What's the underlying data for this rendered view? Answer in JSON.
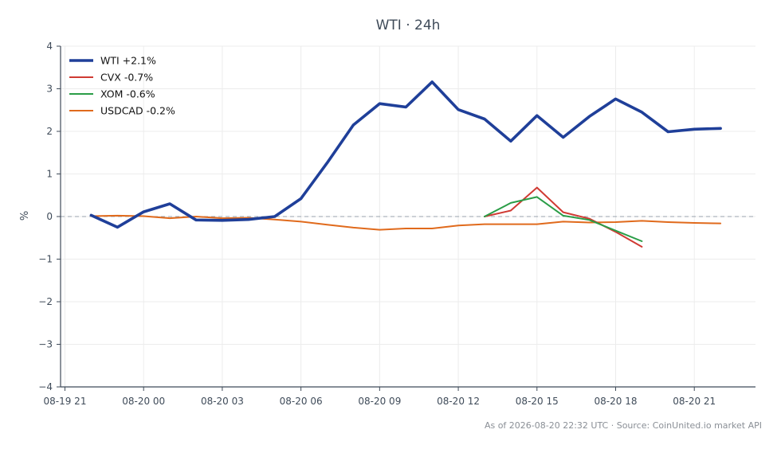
{
  "chart_data": {
    "type": "line",
    "title": "WTI · 24h",
    "xlabel": "",
    "ylabel": "%",
    "ylim": [
      -4,
      4
    ],
    "xlim": [
      "2026-08-19 20:50",
      "2026-08-20 23:20"
    ],
    "x_ticks": [
      "08-19 21",
      "08-20 00",
      "08-20 03",
      "08-20 06",
      "08-20 09",
      "08-20 12",
      "08-20 15",
      "08-20 18",
      "08-20 21"
    ],
    "y_ticks": [
      "−4",
      "−3",
      "−2",
      "−1",
      "0",
      "1",
      "2",
      "3",
      "4"
    ],
    "grid": true,
    "zero_line": true,
    "legend_position": "top-left",
    "footer": "As of 2026-08-20 22:32 UTC · Source: CoinUnited.io market API",
    "series": [
      {
        "name": "WTI +2.1%",
        "color": "#1f3f99",
        "x": [
          "2026-08-19 22:00",
          "2026-08-19 23:00",
          "2026-08-20 00:00",
          "2026-08-20 01:00",
          "2026-08-20 02:00",
          "2026-08-20 03:00",
          "2026-08-20 04:00",
          "2026-08-20 05:00",
          "2026-08-20 06:00",
          "2026-08-20 07:00",
          "2026-08-20 08:00",
          "2026-08-20 09:00",
          "2026-08-20 10:00",
          "2026-08-20 11:00",
          "2026-08-20 12:00",
          "2026-08-20 13:00",
          "2026-08-20 14:00",
          "2026-08-20 15:00",
          "2026-08-20 16:00",
          "2026-08-20 17:00",
          "2026-08-20 18:00",
          "2026-08-20 19:00",
          "2026-08-20 20:00",
          "2026-08-20 21:00",
          "2026-08-20 22:00"
        ],
        "values": [
          0.03,
          -0.25,
          0.11,
          0.3,
          -0.08,
          -0.09,
          -0.07,
          0.0,
          0.42,
          1.26,
          2.15,
          2.65,
          2.57,
          3.16,
          2.51,
          2.29,
          1.77,
          2.37,
          1.86,
          2.35,
          2.76,
          2.45,
          1.99,
          2.05,
          2.07
        ]
      },
      {
        "name": "CVX -0.7%",
        "color": "#d03a33",
        "x": [
          "2026-08-20 13:00",
          "2026-08-20 14:00",
          "2026-08-20 15:00",
          "2026-08-20 16:00",
          "2026-08-20 17:00",
          "2026-08-20 18:00",
          "2026-08-20 19:00"
        ],
        "values": [
          0.0,
          0.14,
          0.68,
          0.1,
          -0.05,
          -0.36,
          -0.71
        ]
      },
      {
        "name": "XOM -0.6%",
        "color": "#2a9d47",
        "x": [
          "2026-08-20 13:00",
          "2026-08-20 14:00",
          "2026-08-20 15:00",
          "2026-08-20 16:00",
          "2026-08-20 17:00",
          "2026-08-20 18:00",
          "2026-08-20 19:00"
        ],
        "values": [
          0.0,
          0.32,
          0.46,
          0.02,
          -0.08,
          -0.33,
          -0.58
        ]
      },
      {
        "name": "USDCAD -0.2%",
        "color": "#e06a1c",
        "x": [
          "2026-08-19 22:00",
          "2026-08-19 23:00",
          "2026-08-20 00:00",
          "2026-08-20 01:00",
          "2026-08-20 02:00",
          "2026-08-20 03:00",
          "2026-08-20 04:00",
          "2026-08-20 05:00",
          "2026-08-20 06:00",
          "2026-08-20 07:00",
          "2026-08-20 08:00",
          "2026-08-20 09:00",
          "2026-08-20 10:00",
          "2026-08-20 11:00",
          "2026-08-20 12:00",
          "2026-08-20 13:00",
          "2026-08-20 14:00",
          "2026-08-20 15:00",
          "2026-08-20 16:00",
          "2026-08-20 17:00",
          "2026-08-20 18:00",
          "2026-08-20 19:00",
          "2026-08-20 20:00",
          "2026-08-20 21:00",
          "2026-08-20 22:00"
        ],
        "values": [
          0.01,
          0.02,
          0.01,
          -0.04,
          0.0,
          -0.04,
          -0.03,
          -0.07,
          -0.12,
          -0.19,
          -0.26,
          -0.31,
          -0.28,
          -0.28,
          -0.21,
          -0.18,
          -0.18,
          -0.18,
          -0.12,
          -0.14,
          -0.13,
          -0.1,
          -0.13,
          -0.15,
          -0.16
        ]
      }
    ]
  }
}
